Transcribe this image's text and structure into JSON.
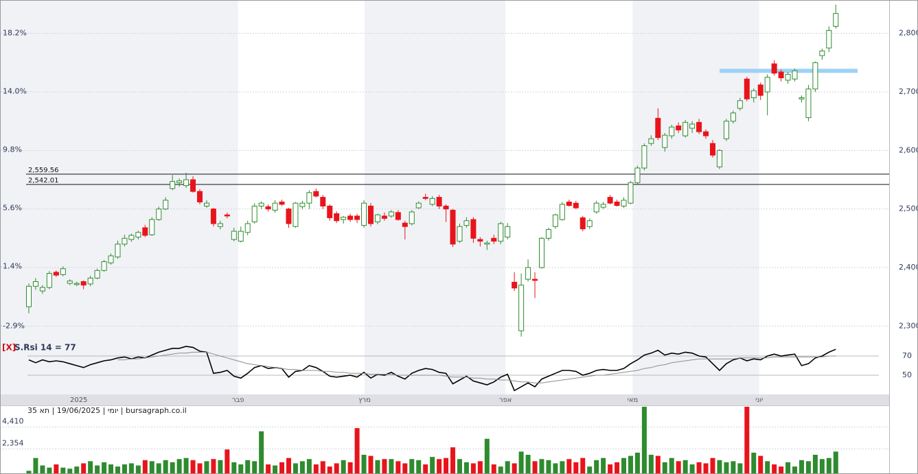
{
  "chart_data": [
    {
      "type": "candlestick",
      "up_color": "#2e8b2e",
      "down_color": "#e8141b",
      "grid": true,
      "xticks": [
        {
          "value": 7.3,
          "label": "2025"
        },
        {
          "value": 30.6,
          "label": "פבר"
        },
        {
          "value": 49.1,
          "label": "מרץ"
        },
        {
          "value": 69.7,
          "label": "אפר"
        },
        {
          "value": 88.3,
          "label": "מאי"
        },
        {
          "value": 106.8,
          "label": "יוני"
        }
      ],
      "ylim": [
        2277,
        2857
      ],
      "yticks": [
        {
          "value": 2300,
          "label": "2,300"
        },
        {
          "value": 2400,
          "label": "2,400"
        },
        {
          "value": 2500,
          "label": "2,500"
        },
        {
          "value": 2600,
          "label": "2,600"
        },
        {
          "value": 2700,
          "label": "2,700"
        },
        {
          "value": 2800,
          "label": "2,800"
        }
      ],
      "y2lim": [
        -3.87,
        20.61
      ],
      "y2ticks": [
        {
          "value": -2.9,
          "label": "-2.9%"
        },
        {
          "value": 1.4,
          "label": "1.4%"
        },
        {
          "value": 5.6,
          "label": "5.6%"
        },
        {
          "value": 9.8,
          "label": "9.8%"
        },
        {
          "value": 14.0,
          "label": "14.0%"
        },
        {
          "value": 18.2,
          "label": "18.2%"
        }
      ],
      "levels": [
        {
          "value": 2559.56,
          "label": "2,559.56"
        },
        {
          "value": 2542.01,
          "label": "2,542.01"
        }
      ],
      "highlight_level": 2736,
      "highlight_color": "#9dd3f7",
      "open": [
        2333,
        2368,
        2360,
        2366,
        2392,
        2388,
        2373,
        2371,
        2376,
        2372,
        2382,
        2395,
        2408,
        2418,
        2440,
        2448,
        2452,
        2468,
        2456,
        2482,
        2500,
        2535,
        2545,
        2540,
        2550,
        2530,
        2505,
        2500,
        2470,
        2490,
        2448,
        2445,
        2460,
        2478,
        2505,
        2504,
        2498,
        2512,
        2500,
        2470,
        2504,
        2510,
        2530,
        2520,
        2505,
        2492,
        2482,
        2488,
        2488,
        2472,
        2505,
        2478,
        2488,
        2488,
        2494,
        2476,
        2475,
        2502,
        2520,
        2508,
        2520,
        2505,
        2498,
        2445,
        2472,
        2482,
        2448,
        2440,
        2450,
        2445,
        2452,
        2375,
        2292,
        2380,
        2380,
        2400,
        2450,
        2470,
        2482,
        2512,
        2510,
        2485,
        2470,
        2495,
        2503,
        2520,
        2512,
        2505,
        2510,
        2545,
        2570,
        2612,
        2655,
        2605,
        2625,
        2642,
        2625,
        2638,
        2648,
        2632,
        2612,
        2572,
        2620,
        2650,
        2672,
        2722,
        2690,
        2712,
        2700,
        2748,
        2734,
        2720,
        2722,
        2688,
        2656,
        2705,
        2762,
        2775,
        2812
      ],
      "high": [
        2373,
        2382,
        2370,
        2394,
        2395,
        2402,
        2380,
        2376,
        2378,
        2386,
        2398,
        2413,
        2424,
        2446,
        2456,
        2458,
        2463,
        2473,
        2486,
        2504,
        2520,
        2558,
        2552,
        2562,
        2556,
        2534,
        2515,
        2502,
        2480,
        2494,
        2468,
        2470,
        2480,
        2510,
        2513,
        2508,
        2515,
        2516,
        2502,
        2512,
        2514,
        2532,
        2535,
        2524,
        2508,
        2496,
        2488,
        2492,
        2492,
        2515,
        2510,
        2492,
        2494,
        2498,
        2498,
        2480,
        2498,
        2513,
        2526,
        2522,
        2524,
        2508,
        2500,
        2475,
        2486,
        2486,
        2452,
        2446,
        2456,
        2478,
        2476,
        2392,
        2390,
        2414,
        2392,
        2452,
        2468,
        2492,
        2512,
        2516,
        2514,
        2488,
        2484,
        2514,
        2512,
        2524,
        2516,
        2520,
        2548,
        2574,
        2612,
        2626,
        2672,
        2630,
        2644,
        2648,
        2652,
        2650,
        2654,
        2636,
        2618,
        2602,
        2654,
        2668,
        2690,
        2726,
        2706,
        2716,
        2730,
        2754,
        2738,
        2734,
        2740,
        2694,
        2712,
        2752,
        2774,
        2812,
        2849
      ],
      "low": [
        2322,
        2362,
        2355,
        2363,
        2384,
        2385,
        2370,
        2368,
        2363,
        2368,
        2380,
        2393,
        2405,
        2415,
        2436,
        2444,
        2448,
        2452,
        2454,
        2480,
        2498,
        2532,
        2538,
        2536,
        2528,
        2508,
        2502,
        2470,
        2465,
        2484,
        2445,
        2443,
        2455,
        2475,
        2500,
        2496,
        2494,
        2505,
        2468,
        2468,
        2500,
        2500,
        2520,
        2500,
        2480,
        2476,
        2475,
        2478,
        2476,
        2468,
        2470,
        2474,
        2480,
        2485,
        2480,
        2448,
        2472,
        2500,
        2515,
        2505,
        2500,
        2478,
        2435,
        2442,
        2468,
        2442,
        2436,
        2430,
        2440,
        2440,
        2448,
        2360,
        2282,
        2376,
        2348,
        2398,
        2446,
        2466,
        2480,
        2504,
        2500,
        2462,
        2466,
        2492,
        2500,
        2508,
        2504,
        2502,
        2508,
        2542,
        2566,
        2608,
        2618,
        2598,
        2620,
        2630,
        2622,
        2630,
        2628,
        2620,
        2588,
        2568,
        2616,
        2646,
        2668,
        2684,
        2682,
        2686,
        2660,
        2728,
        2718,
        2714,
        2718,
        2682,
        2650,
        2700,
        2755,
        2768,
        2808
      ],
      "close": [
        2368,
        2376,
        2366,
        2390,
        2387,
        2398,
        2377,
        2373,
        2370,
        2382,
        2395,
        2410,
        2420,
        2440,
        2450,
        2455,
        2460,
        2455,
        2482,
        2500,
        2515,
        2547,
        2548,
        2550,
        2530,
        2512,
        2510,
        2475,
        2475,
        2488,
        2462,
        2462,
        2475,
        2505,
        2510,
        2500,
        2510,
        2508,
        2475,
        2510,
        2510,
        2528,
        2522,
        2505,
        2485,
        2480,
        2486,
        2482,
        2482,
        2510,
        2475,
        2490,
        2484,
        2495,
        2482,
        2470,
        2495,
        2510,
        2518,
        2518,
        2505,
        2500,
        2440,
        2470,
        2480,
        2450,
        2445,
        2442,
        2445,
        2475,
        2470,
        2365,
        2370,
        2400,
        2378,
        2450,
        2465,
        2490,
        2508,
        2506,
        2502,
        2466,
        2480,
        2510,
        2508,
        2510,
        2506,
        2515,
        2545,
        2570,
        2608,
        2620,
        2622,
        2626,
        2640,
        2635,
        2648,
        2645,
        2632,
        2625,
        2592,
        2600,
        2650,
        2664,
        2685,
        2688,
        2702,
        2694,
        2725,
        2732,
        2724,
        2730,
        2736,
        2690,
        2705,
        2750,
        2770,
        2805,
        2834
      ]
    },
    {
      "type": "line",
      "title_prefix": "[X]",
      "title": "S.Rsi 14 = 77",
      "ylim": [
        30,
        85
      ],
      "yticks": [
        50,
        70
      ],
      "grid_color": "#b8b8b8",
      "series": [
        {
          "color": "#000000",
          "values": [
            66,
            63,
            66,
            64,
            65,
            64,
            62,
            60,
            58,
            61,
            63,
            65,
            66,
            68,
            69,
            67,
            69,
            68,
            71,
            74,
            76,
            78,
            78,
            80,
            79,
            75,
            74,
            52,
            53,
            55,
            49,
            47,
            52,
            58,
            60,
            57,
            58,
            57,
            48,
            54,
            55,
            60,
            58,
            54,
            49,
            48,
            49,
            50,
            48,
            53,
            47,
            51,
            50,
            53,
            49,
            46,
            52,
            55,
            57,
            56,
            53,
            52,
            41,
            45,
            49,
            44,
            42,
            40,
            43,
            48,
            51,
            34,
            38,
            42,
            38,
            46,
            49,
            52,
            55,
            55,
            54,
            50,
            52,
            55,
            56,
            55,
            55,
            57,
            62,
            66,
            71,
            73,
            76,
            71,
            73,
            72,
            74,
            73,
            70,
            69,
            62,
            55,
            62,
            66,
            68,
            65,
            67,
            66,
            70,
            72,
            70,
            71,
            72,
            60,
            62,
            68,
            70,
            74,
            77
          ]
        },
        {
          "color": "#8c8c8c",
          "values": [
            null,
            null,
            null,
            null,
            null,
            null,
            null,
            null,
            null,
            null,
            null,
            null,
            null,
            66,
            66,
            67,
            67,
            68,
            69,
            70,
            71,
            72,
            73,
            73,
            74,
            74,
            74,
            72,
            70,
            68,
            66,
            64,
            62,
            61,
            60,
            59,
            58,
            57,
            56,
            56,
            55,
            55,
            55,
            54,
            54,
            53,
            53,
            52,
            52,
            52,
            51,
            51,
            51,
            51,
            50,
            50,
            50,
            50,
            50,
            50,
            50,
            49,
            48,
            48,
            48,
            47,
            47,
            46,
            46,
            45,
            45,
            44,
            43,
            43,
            42,
            42,
            43,
            44,
            45,
            46,
            47,
            48,
            49,
            50,
            50,
            51,
            52,
            53,
            54,
            55,
            57,
            58,
            60,
            61,
            63,
            64,
            65,
            66,
            67,
            67,
            67,
            67,
            67,
            67,
            68,
            68,
            68,
            68,
            68,
            69,
            69,
            69,
            69,
            69,
            69,
            69,
            69,
            70,
            70
          ]
        }
      ]
    },
    {
      "type": "bar",
      "title": "יומי | 19/06/2025 | תא 35 | bursagraph.co.il",
      "grid": true,
      "ylim": [
        0,
        6300
      ],
      "yticks": [
        {
          "value": 2354,
          "label": "2,354"
        },
        {
          "value": 4410,
          "label": "4,410"
        }
      ],
      "values": [
        300,
        1500,
        800,
        600,
        900,
        600,
        500,
        700,
        1000,
        1200,
        800,
        1100,
        900,
        700,
        900,
        1000,
        800,
        1300,
        1200,
        1000,
        1300,
        1100,
        1400,
        1500,
        1300,
        1000,
        1200,
        1400,
        1300,
        2300,
        1100,
        900,
        1300,
        1200,
        4000,
        900,
        800,
        1100,
        1500,
        1000,
        1200,
        1400,
        900,
        1200,
        700,
        1000,
        1300,
        1100,
        4300,
        1800,
        1700,
        1300,
        1400,
        1400,
        1200,
        1000,
        1400,
        1300,
        900,
        1600,
        1400,
        1500,
        2500,
        1400,
        1100,
        1000,
        1200,
        3300,
        900,
        700,
        1200,
        1000,
        2100,
        1800,
        1200,
        1400,
        1300,
        1000,
        1200,
        1400,
        1100,
        1500,
        700,
        1300,
        1500,
        900,
        1100,
        1500,
        1700,
        2000,
        6300,
        1800,
        1700,
        1100,
        1500,
        1200,
        1300,
        900,
        1100,
        1000,
        1500,
        1300,
        1100,
        1200,
        1000,
        6300,
        2000,
        1700,
        1200,
        900,
        700,
        1100,
        700,
        1300,
        1200,
        1800,
        1400,
        1500,
        2100
      ]
    }
  ]
}
